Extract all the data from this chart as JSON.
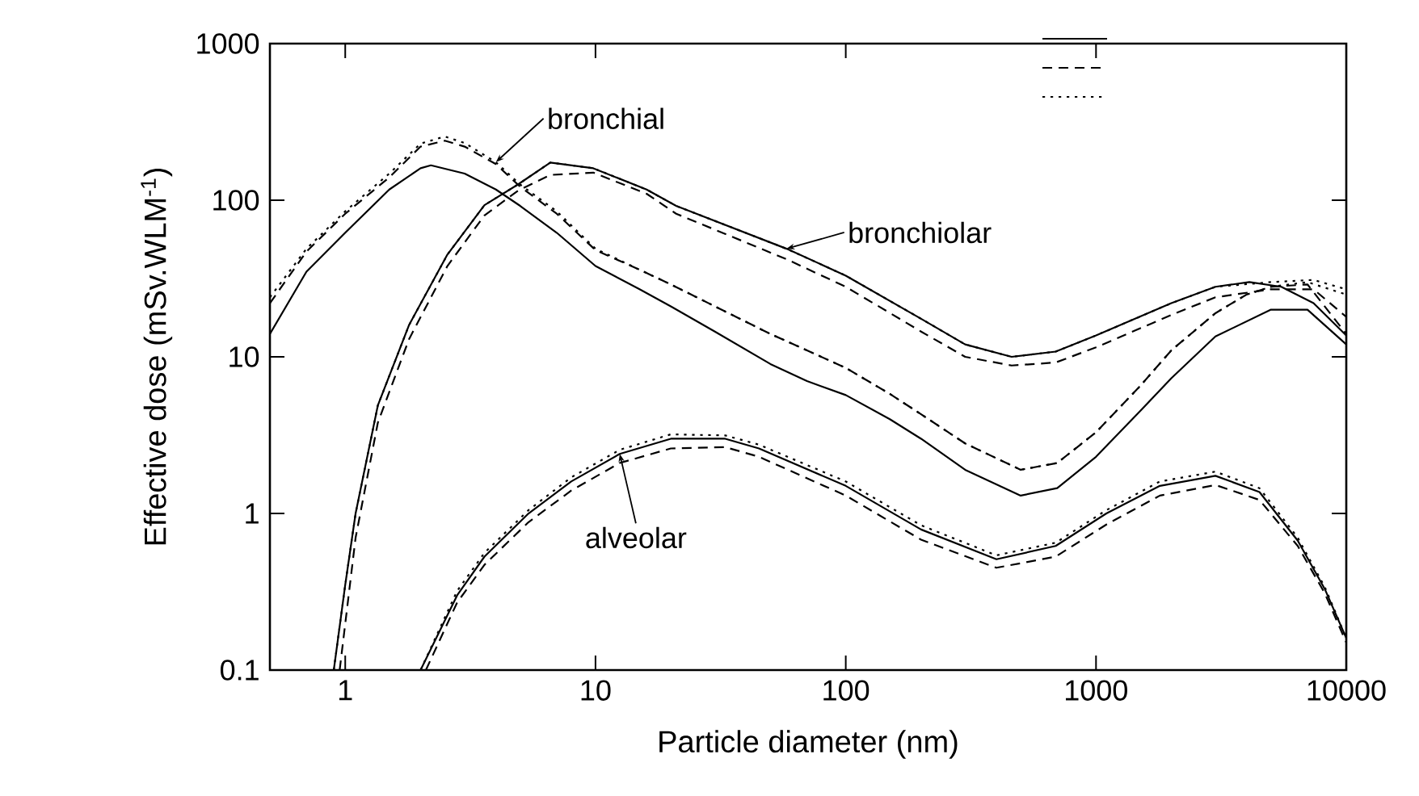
{
  "chart_data": {
    "type": "line",
    "xlabel": "Particle diameter (nm)",
    "ylabel": "Effective dose (mSv.WLM$^{-1}$)",
    "log": "xy",
    "xlim": [
      0.5,
      10000
    ],
    "ylim": [
      0.1,
      1000
    ],
    "xticks": [
      1,
      10,
      100,
      1000,
      10000
    ],
    "yticks": [
      0.1,
      1,
      10,
      100,
      1000
    ],
    "grid": false,
    "marker": "none",
    "series": [
      {
        "color": "#000000",
        "line_style": "solid",
        "x": [
          0.5,
          0.7,
          1,
          1.5,
          2,
          2.2,
          3,
          4,
          5,
          7,
          10,
          15,
          20,
          30,
          50,
          70,
          100,
          150,
          200,
          300,
          500,
          700,
          1000,
          1500,
          2000,
          3000,
          5000,
          7000,
          10000
        ],
        "values": [
          14,
          35,
          62,
          117,
          160,
          167,
          148,
          117,
          92,
          62,
          38,
          27,
          21,
          14.5,
          9,
          7,
          5.7,
          4,
          3,
          1.9,
          1.3,
          1.45,
          2.3,
          4.5,
          7.3,
          13.5,
          20,
          20,
          12
        ]
      },
      {
        "color": "#000000",
        "line_style": "dashed",
        "x": [
          0.5,
          0.7,
          1,
          1.5,
          2,
          2.5,
          3,
          4,
          5,
          7,
          10,
          15,
          20,
          30,
          50,
          70,
          100,
          150,
          200,
          300,
          500,
          700,
          1000,
          1500,
          2000,
          3000,
          4000,
          5000,
          7000,
          10000
        ],
        "values": [
          22,
          47,
          82,
          140,
          220,
          240,
          220,
          170,
          122,
          82,
          48,
          36,
          29,
          21,
          14,
          11,
          8.5,
          5.8,
          4.3,
          2.8,
          1.9,
          2.1,
          3.3,
          6.5,
          11,
          19,
          25,
          28,
          29,
          14
        ]
      },
      {
        "color": "#000000",
        "line_style": "dotted",
        "x": [
          0.5,
          0.7,
          1,
          1.5,
          2,
          2.5,
          3,
          4,
          5,
          7,
          10,
          15,
          20,
          30,
          50,
          70,
          100,
          150,
          200,
          300,
          500,
          700,
          1000,
          1500,
          2000,
          3000,
          4000,
          5000,
          7000,
          10000
        ],
        "values": [
          24,
          49,
          85,
          148,
          230,
          255,
          232,
          175,
          126,
          85,
          49,
          36,
          29,
          21,
          14,
          11,
          8.5,
          5.8,
          4.3,
          2.8,
          1.9,
          2.1,
          3.3,
          6.5,
          11,
          19,
          25,
          28,
          30,
          25
        ]
      },
      {
        "color": "#000000",
        "line_style": "solid",
        "x": [
          0.9,
          1,
          1.1,
          1.35,
          1.8,
          2.56,
          3.6,
          4.9,
          6.6,
          9.8,
          16,
          21,
          58,
          100,
          200,
          300,
          460,
          690,
          1000,
          2000,
          3000,
          4100,
          5500,
          7400,
          10000
        ],
        "values": [
          0.1,
          0.35,
          1,
          4.9,
          16,
          45,
          93,
          126,
          174,
          160,
          117,
          92,
          49,
          33,
          17.5,
          12,
          10,
          10.8,
          13.7,
          22,
          28,
          30,
          28,
          22,
          13.7
        ]
      },
      {
        "color": "#000000",
        "line_style": "dashed",
        "x": [
          0.95,
          1.1,
          1.35,
          1.8,
          2.56,
          3.6,
          4.9,
          6.6,
          9.8,
          16,
          21,
          58,
          100,
          200,
          300,
          460,
          690,
          1000,
          2000,
          3000,
          5000,
          7400,
          10000
        ],
        "values": [
          0.1,
          0.7,
          3.8,
          13,
          38,
          80,
          115,
          145,
          150,
          110,
          82,
          42,
          28,
          14.5,
          10,
          8.8,
          9.2,
          11.5,
          18.5,
          24,
          27,
          27,
          18
        ]
      },
      {
        "color": "#000000",
        "line_style": "dotted",
        "x": [
          0.9,
          1,
          1.1,
          1.35,
          1.8,
          2.56,
          3.6,
          4.9,
          6.6,
          9.8,
          16,
          21,
          58,
          100,
          200,
          300,
          460,
          690,
          1000,
          2000,
          3000,
          5000,
          7400,
          10000
        ],
        "values": [
          0.1,
          0.35,
          1,
          4.9,
          16,
          45,
          93,
          126,
          174,
          160,
          117,
          92,
          49,
          33,
          17.5,
          12,
          10,
          10.8,
          13.7,
          22,
          28,
          30,
          31,
          27
        ]
      },
      {
        "color": "#000000",
        "line_style": "solid",
        "x": [
          2,
          2.8,
          3.6,
          5.4,
          8,
          12.5,
          20,
          33,
          45,
          100,
          200,
          400,
          690,
          1100,
          1800,
          3000,
          4500,
          6400,
          8200,
          10000
        ],
        "values": [
          0.1,
          0.3,
          0.53,
          1,
          1.6,
          2.4,
          3,
          3,
          2.6,
          1.5,
          0.79,
          0.51,
          0.62,
          1,
          1.5,
          1.74,
          1.37,
          0.67,
          0.33,
          0.16
        ]
      },
      {
        "color": "#000000",
        "line_style": "dashed",
        "x": [
          2.1,
          2.8,
          3.6,
          5.4,
          8,
          12.5,
          20,
          33,
          45,
          100,
          200,
          400,
          690,
          1100,
          1800,
          3000,
          4500,
          6400,
          8200,
          10000
        ],
        "values": [
          0.1,
          0.27,
          0.47,
          0.88,
          1.4,
          2.1,
          2.6,
          2.65,
          2.3,
          1.3,
          0.68,
          0.45,
          0.53,
          0.85,
          1.3,
          1.52,
          1.22,
          0.62,
          0.31,
          0.15
        ]
      },
      {
        "color": "#000000",
        "line_style": "dotted",
        "x": [
          2,
          2.8,
          3.6,
          5.4,
          8,
          12.5,
          20,
          33,
          45,
          100,
          200,
          400,
          690,
          1100,
          1800,
          3000,
          4500,
          6400,
          8200,
          10000
        ],
        "values": [
          0.1,
          0.32,
          0.56,
          1.05,
          1.7,
          2.55,
          3.2,
          3.15,
          2.75,
          1.6,
          0.84,
          0.54,
          0.65,
          1.05,
          1.6,
          1.85,
          1.45,
          0.7,
          0.34,
          0.16
        ]
      }
    ],
    "annotations": [
      {
        "text": "bronchial",
        "x": 4,
        "y": 175
      },
      {
        "text": "bronchiolar",
        "x": 58,
        "y": 49
      },
      {
        "text": "alveolar",
        "x": 12.5,
        "y": 2.4
      }
    ]
  }
}
